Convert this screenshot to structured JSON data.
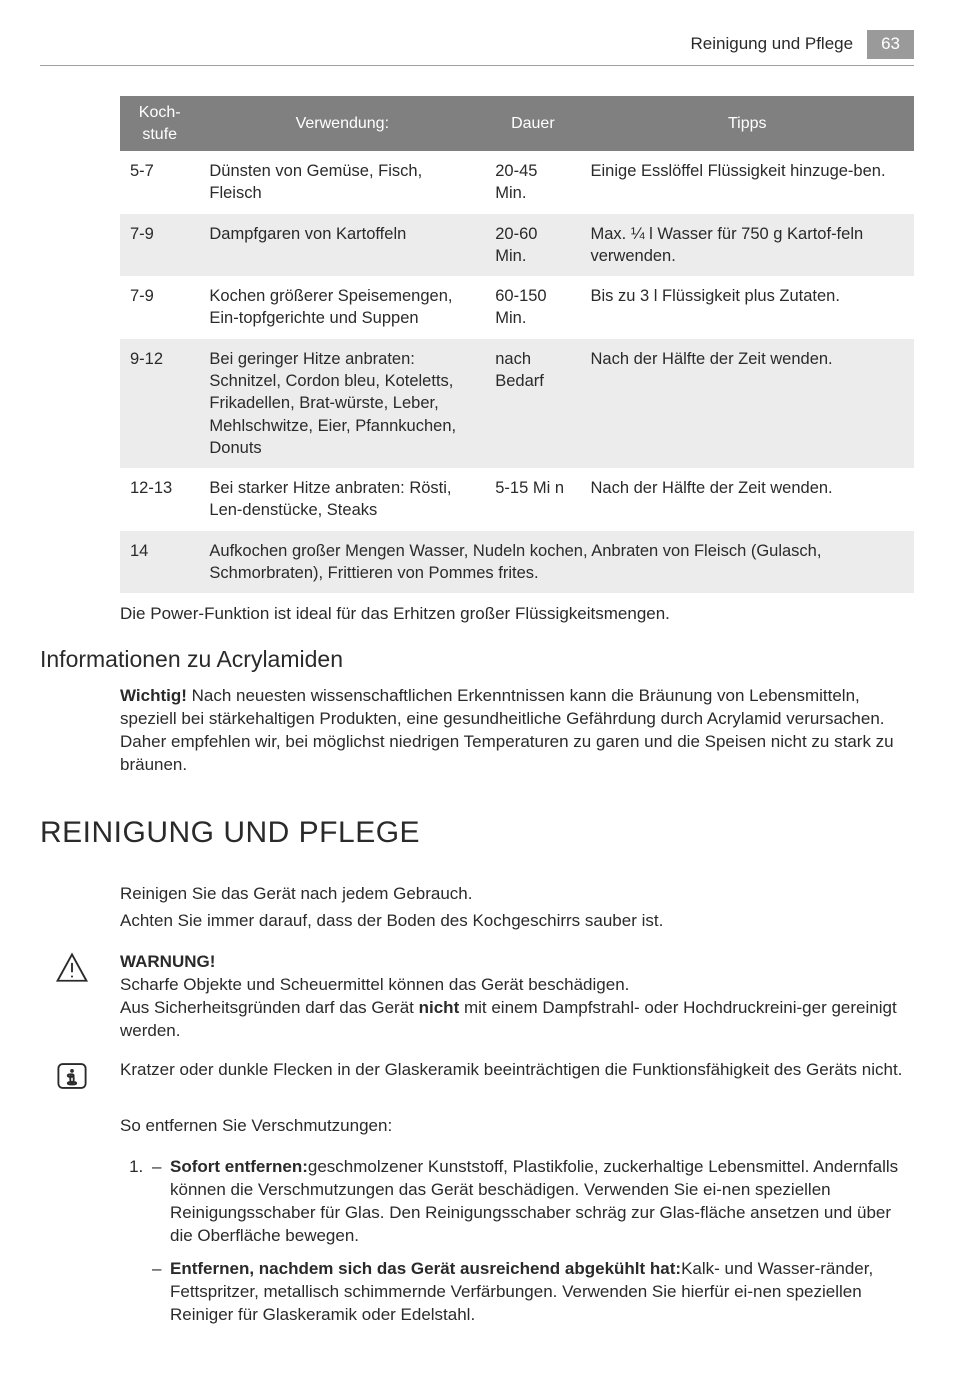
{
  "header": {
    "section": "Reinigung und Pflege",
    "page": "63"
  },
  "table": {
    "columns": [
      "Koch-\nstufe",
      "Verwendung:",
      "Dauer",
      "Tipps"
    ],
    "header_bg": "#808080",
    "alt_bg": "#ececec",
    "rows": [
      {
        "stufe": "5-7",
        "verwendung": "Dünsten von Gemüse, Fisch, Fleisch",
        "dauer": "20-45 Min.",
        "tipps": "Einige Esslöffel Flüssigkeit hinzuge-ben.",
        "alt": false
      },
      {
        "stufe": "7-9",
        "verwendung": "Dampfgaren von Kartoffeln",
        "dauer": "20-60 Min.",
        "tipps": "Max. ¼ l Wasser für 750 g Kartof-feln verwenden.",
        "alt": true
      },
      {
        "stufe": "7-9",
        "verwendung": "Kochen größerer Speisemengen, Ein-topfgerichte und Suppen",
        "dauer": "60-150 Min.",
        "tipps": "Bis zu 3 l Flüssigkeit plus Zutaten.",
        "alt": false
      },
      {
        "stufe": "9-12",
        "verwendung": "Bei geringer Hitze anbraten: Schnitzel, Cordon bleu, Koteletts, Frikadellen, Brat-würste, Leber, Mehlschwitze, Eier, Pfannkuchen, Donuts",
        "dauer": "nach Bedarf",
        "tipps": "Nach der Hälfte der Zeit wenden.",
        "alt": true
      },
      {
        "stufe": "12-13",
        "verwendung": "Bei starker Hitze anbraten: Rösti, Len-denstücke, Steaks",
        "dauer": "5-15 Mi n",
        "tipps": "Nach der Hälfte der Zeit wenden.",
        "alt": false
      },
      {
        "stufe": "14",
        "span": "Aufkochen großer Mengen Wasser, Nudeln kochen, Anbraten von Fleisch (Gulasch, Schmorbraten), Frittieren von Pommes frites.",
        "alt": true
      }
    ],
    "footer_note": "Die Power-Funktion ist ideal für das Erhitzen großer Flüssigkeitsmengen."
  },
  "acryl": {
    "heading": "Informationen zu Acrylamiden",
    "label": "Wichtig!",
    "text": " Nach neuesten wissenschaftlichen Erkenntnissen kann die Bräunung von Lebensmitteln, speziell bei stärkehaltigen Produkten, eine gesundheitliche Gefährdung durch Acrylamid verursachen. Daher empfehlen wir, bei möglichst niedrigen Temperaturen zu garen und die Speisen nicht zu stark zu bräunen."
  },
  "main_heading": "REINIGUNG UND PFLEGE",
  "intro": {
    "l1": "Reinigen Sie das Gerät nach jedem Gebrauch.",
    "l2": "Achten Sie immer darauf, dass der Boden des Kochgeschirrs sauber ist."
  },
  "warning": {
    "label": "WARNUNG!",
    "l1": "Scharfe Objekte und Scheuermittel können das Gerät beschädigen.",
    "l2a": "Aus Sicherheitsgründen darf das Gerät ",
    "l2b": "nicht",
    "l2c": " mit einem Dampfstrahl- oder Hochdruckreini-ger gereinigt werden."
  },
  "info": {
    "text": "Kratzer oder dunkle Flecken in der Glaskeramik beeinträchtigen die Funktionsfähigkeit des Geräts nicht."
  },
  "clean": {
    "lead": "So entfernen Sie Verschmutzungen:",
    "items": [
      {
        "bold": "Sofort entfernen:",
        "rest": "geschmolzener Kunststoff, Plastikfolie, zuckerhaltige Lebensmittel. Andernfalls können die Verschmutzungen das Gerät beschädigen. Verwenden Sie ei-nen speziellen Reinigungsschaber für Glas. Den Reinigungsschaber schräg zur Glas-fläche ansetzen und über die Oberfläche bewegen."
      },
      {
        "bold": "Entfernen, nachdem sich das Gerät ausreichend abgekühlt hat:",
        "rest": "Kalk- und Wasser-ränder, Fettspritzer, metallisch schimmernde Verfärbungen. Verwenden Sie hierfür ei-nen speziellen Reiniger für Glaskeramik oder Edelstahl."
      }
    ]
  }
}
